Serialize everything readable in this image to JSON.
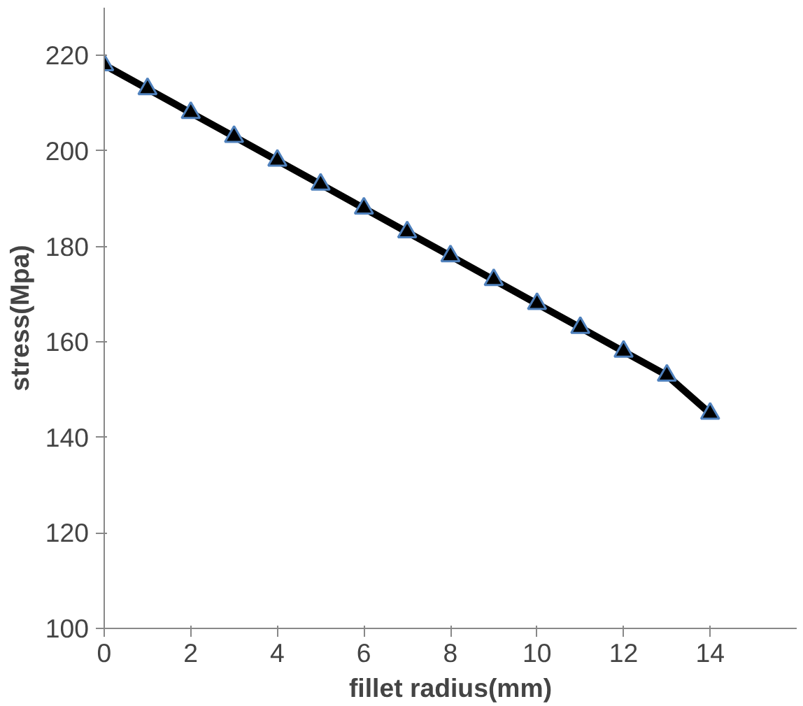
{
  "chart_data": {
    "type": "line",
    "xlabel": "fillet radius(mm)",
    "ylabel": "stress(Mpa)",
    "x": [
      0,
      1,
      2,
      3,
      4,
      5,
      6,
      7,
      8,
      9,
      10,
      11,
      12,
      13,
      14
    ],
    "series": [
      {
        "color": "#000000",
        "values": [
          218,
          213,
          208,
          203,
          198,
          193,
          188,
          183,
          178,
          173,
          168,
          163,
          158,
          153,
          145
        ]
      }
    ],
    "xlim": [
      0,
      16
    ],
    "xticks": [
      0,
      2,
      4,
      6,
      8,
      10,
      12,
      14
    ],
    "ylim": [
      100,
      230
    ],
    "yticks": [
      100,
      120,
      140,
      160,
      180,
      200,
      220
    ],
    "grid": false,
    "marker": "triangle",
    "line_style": "solid"
  }
}
